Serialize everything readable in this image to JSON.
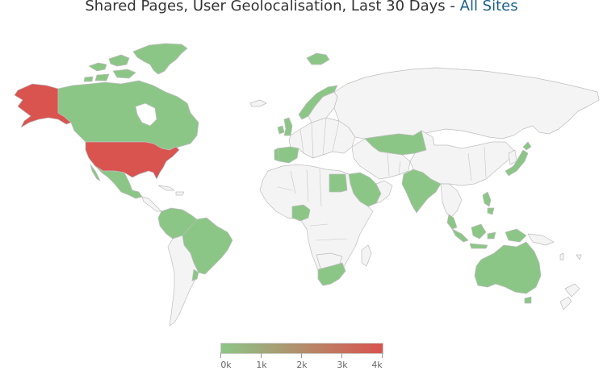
{
  "title": {
    "text": "Shared Pages, User Geolocalisation, Last 30 Days - ",
    "link": "All Sites"
  },
  "colors": {
    "scale_low": "#8cc687",
    "scale_high": "#d9534f",
    "no_data": "#f4f4f4",
    "border": "#bdbdbd",
    "link": "#1a5f8a"
  },
  "map": {
    "countries": [
      {
        "id": "alaska",
        "name": "Alaska",
        "level": "4k"
      },
      {
        "id": "usa",
        "name": "United States",
        "level": "4k"
      },
      {
        "id": "canada",
        "name": "Canada",
        "level": "0k"
      },
      {
        "id": "greenland",
        "name": "Greenland",
        "level": "0k"
      },
      {
        "id": "mexico",
        "name": "Mexico",
        "level": "0k"
      },
      {
        "id": "brazil",
        "name": "Brazil",
        "level": "0k"
      },
      {
        "id": "colombia",
        "name": "Colombia",
        "level": "0k"
      },
      {
        "id": "ireland",
        "name": "Ireland",
        "level": "0k"
      },
      {
        "id": "spain",
        "name": "Spain",
        "level": "0k"
      },
      {
        "id": "portugal",
        "name": "Portugal",
        "level": "0k"
      },
      {
        "id": "norway",
        "name": "Norway",
        "level": "0k"
      },
      {
        "id": "svalbard",
        "name": "Svalbard",
        "level": "0k"
      },
      {
        "id": "egypt",
        "name": "Egypt",
        "level": "0k"
      },
      {
        "id": "saudi_arabia",
        "name": "Saudi Arabia",
        "level": "0k"
      },
      {
        "id": "nigeria",
        "name": "Nigeria",
        "level": "0k"
      },
      {
        "id": "south_africa",
        "name": "South Africa",
        "level": "0k"
      },
      {
        "id": "kazakhstan",
        "name": "Kazakhstan",
        "level": "0k"
      },
      {
        "id": "india",
        "name": "India",
        "level": "0k"
      },
      {
        "id": "japan",
        "name": "Japan",
        "level": "0k"
      },
      {
        "id": "indonesia",
        "name": "Indonesia",
        "level": "0k"
      },
      {
        "id": "philippines",
        "name": "Philippines",
        "level": "0k"
      },
      {
        "id": "australia",
        "name": "Australia",
        "level": "0k"
      }
    ]
  },
  "legend": {
    "labels": [
      "0k",
      "1k",
      "2k",
      "3k",
      "4k"
    ]
  }
}
